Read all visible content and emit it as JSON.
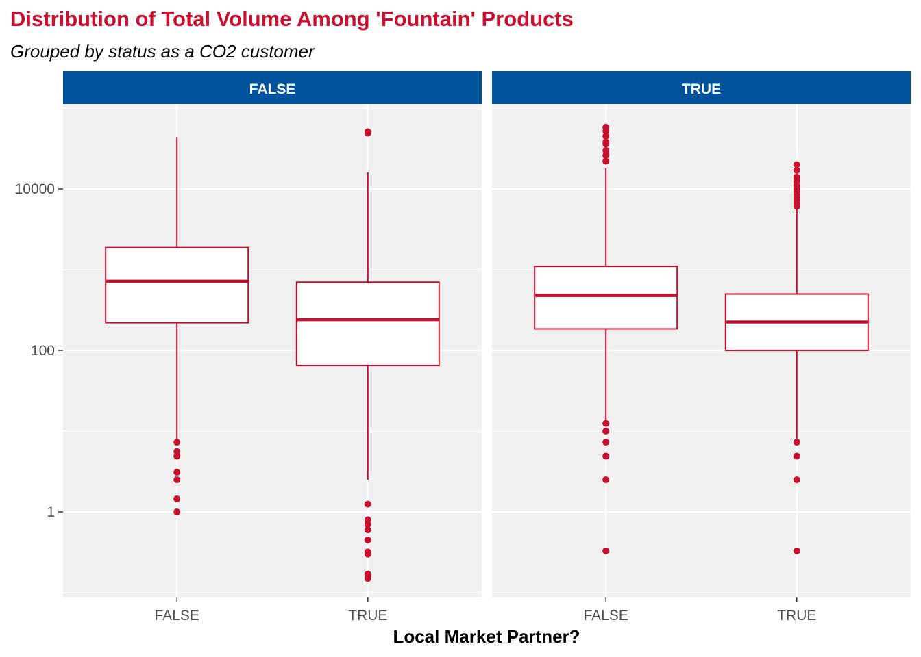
{
  "title": "Distribution of Total Volume Among 'Fountain' Products",
  "subtitle": "Grouped by status as a CO2 customer",
  "chart_data": {
    "type": "boxplot",
    "title": "Distribution of Total Volume Among 'Fountain' Products",
    "subtitle": "Grouped by status as a CO2 customer",
    "xlabel": "Local Market Partner?",
    "ylabel": "",
    "y_scale": "log10",
    "ylim": [
      0.14,
      70000
    ],
    "y_ticks": [
      1,
      100,
      10000
    ],
    "y_tick_labels": [
      "1",
      "100",
      "10000"
    ],
    "categories": [
      "FALSE",
      "TRUE"
    ],
    "grid": true,
    "colors": {
      "accent": "#c8102e",
      "strip": "#00539b",
      "panel_bg": "#f0f0f0",
      "grid": "#ffffff"
    },
    "facets": [
      {
        "label": "FALSE",
        "boxes": [
          {
            "category": "FALSE",
            "whisker_low": 7.0,
            "q1": 220,
            "median": 720,
            "q3": 1880,
            "whisker_high": 44000,
            "outliers": [
              7.3,
              5.6,
              4.9,
              3.1,
              2.5,
              1.45,
              1.0
            ]
          },
          {
            "category": "TRUE",
            "whisker_low": 2.5,
            "q1": 65,
            "median": 240,
            "q3": 700,
            "whisker_high": 16000,
            "outliers": [
              51000,
              49000,
              1.25,
              0.8,
              0.7,
              0.6,
              0.45,
              0.32,
              0.3,
              0.17,
              0.16,
              0.15
            ]
          }
        ]
      },
      {
        "label": "TRUE",
        "boxes": [
          {
            "category": "FALSE",
            "whisker_low": 13,
            "q1": 185,
            "median": 480,
            "q3": 1100,
            "whisker_high": 18000,
            "outliers": [
              58000,
              52000,
              45000,
              38000,
              36000,
              30000,
              26000,
              22000,
              12.5,
              10,
              7.3,
              4.9,
              2.5,
              0.33
            ]
          },
          {
            "category": "TRUE",
            "whisker_low": 7.5,
            "q1": 100,
            "median": 225,
            "q3": 500,
            "whisker_high": 6000,
            "outliers": [
              20000,
              17000,
              14000,
              12500,
              11000,
              10000,
              9200,
              8500,
              7800,
              7200,
              6600,
              6100,
              7.3,
              4.9,
              2.5,
              0.33
            ]
          }
        ]
      }
    ]
  }
}
